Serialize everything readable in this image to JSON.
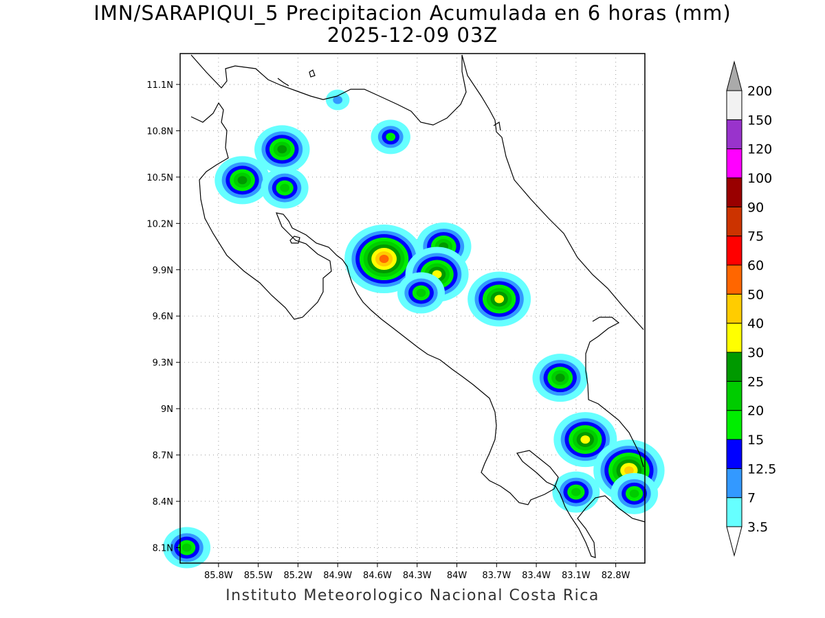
{
  "title_line1": "IMN/SARAPIQUI_5 Precipitacion Acumulada en 6 horas (mm)",
  "title_line2": "2025-12-09 03Z",
  "footer": "Instituto Meteorologico Nacional Costa Rica",
  "map": {
    "lon_range": [
      -86.09,
      -82.58
    ],
    "lat_range": [
      8.0,
      11.3
    ],
    "x_ticks": [
      "85.8W",
      "85.5W",
      "85.2W",
      "84.9W",
      "84.6W",
      "84.3W",
      "84W",
      "83.7W",
      "83.4W",
      "83.1W",
      "82.8W"
    ],
    "x_tick_values": [
      -85.8,
      -85.5,
      -85.2,
      -84.9,
      -84.6,
      -84.3,
      -84.0,
      -83.7,
      -83.4,
      -83.1,
      -82.8
    ],
    "y_ticks": [
      "8.1N",
      "8.4N",
      "8.7N",
      "9N",
      "9.3N",
      "9.6N",
      "9.9N",
      "10.2N",
      "10.5N",
      "10.8N",
      "11.1N"
    ],
    "y_tick_values": [
      8.1,
      8.4,
      8.7,
      9.0,
      9.3,
      9.6,
      9.9,
      10.2,
      10.5,
      10.8,
      11.1
    ],
    "grid": "dotted"
  },
  "colorbar": {
    "units": "mm",
    "levels": [
      "3.5",
      "7",
      "12.5",
      "15",
      "20",
      "25",
      "30",
      "40",
      "50",
      "60",
      "75",
      "90",
      "100",
      "120",
      "150",
      "200"
    ],
    "colors": [
      "#66ffff",
      "#3399ff",
      "#0000ff",
      "#00ee00",
      "#00cc00",
      "#009900",
      "#ffff00",
      "#ffcc00",
      "#ff6600",
      "#ff0000",
      "#cc3300",
      "#990000",
      "#ff00ff",
      "#9933cc",
      "#f2f2f2",
      "#aaaaaa"
    ]
  },
  "precip_cells": [
    {
      "lon": -85.62,
      "lat": 10.48,
      "max": "25"
    },
    {
      "lon": -85.32,
      "lat": 10.68,
      "max": "25"
    },
    {
      "lon": -85.3,
      "lat": 10.43,
      "max": "20"
    },
    {
      "lon": -84.5,
      "lat": 10.76,
      "max": "15"
    },
    {
      "lon": -84.55,
      "lat": 9.97,
      "max": "50"
    },
    {
      "lon": -84.1,
      "lat": 10.05,
      "max": "25"
    },
    {
      "lon": -84.15,
      "lat": 9.87,
      "max": "30"
    },
    {
      "lon": -84.27,
      "lat": 9.75,
      "max": "20"
    },
    {
      "lon": -83.68,
      "lat": 9.71,
      "max": "30"
    },
    {
      "lon": -83.22,
      "lat": 9.2,
      "max": "25"
    },
    {
      "lon": -83.03,
      "lat": 8.8,
      "max": "30"
    },
    {
      "lon": -82.7,
      "lat": 8.6,
      "max": "40"
    },
    {
      "lon": -82.66,
      "lat": 8.45,
      "max": "20"
    },
    {
      "lon": -83.1,
      "lat": 8.46,
      "max": "20"
    },
    {
      "lon": -86.04,
      "lat": 8.1,
      "max": "20"
    },
    {
      "lon": -84.9,
      "lat": 11.0,
      "max": "7"
    }
  ]
}
